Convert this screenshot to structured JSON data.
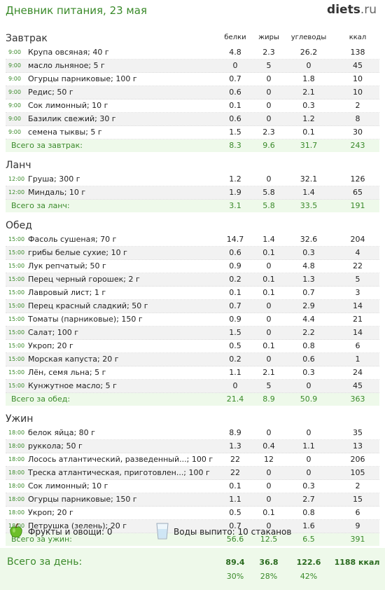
{
  "page": {
    "title": "Дневник питания, 23 мая",
    "logo_name": "diets",
    "logo_tld": ".ru"
  },
  "columns": {
    "protein": "белки",
    "fat": "жиры",
    "carbs": "углеводы",
    "kcal": "ккал"
  },
  "sections": [
    {
      "title": "Завтрак",
      "rows": [
        {
          "time": "9:00",
          "name": "Крупа овсяная; 40 г",
          "protein": "4.8",
          "fat": "2.3",
          "carbs": "26.2",
          "kcal": "138"
        },
        {
          "time": "9:00",
          "name": "масло льняное; 5 г",
          "protein": "0",
          "fat": "5",
          "carbs": "0",
          "kcal": "45"
        },
        {
          "time": "9:00",
          "name": "Огурцы парниковые; 100 г",
          "protein": "0.7",
          "fat": "0",
          "carbs": "1.8",
          "kcal": "10"
        },
        {
          "time": "9:00",
          "name": "Редис; 50 г",
          "protein": "0.6",
          "fat": "0",
          "carbs": "2.1",
          "kcal": "10"
        },
        {
          "time": "9:00",
          "name": "Сок лимонный; 10 г",
          "protein": "0.1",
          "fat": "0",
          "carbs": "0.3",
          "kcal": "2"
        },
        {
          "time": "9:00",
          "name": "Базилик свежий; 30 г",
          "protein": "0.6",
          "fat": "0",
          "carbs": "1.2",
          "kcal": "8"
        },
        {
          "time": "9:00",
          "name": "семена тыквы; 5 г",
          "protein": "1.5",
          "fat": "2.3",
          "carbs": "0.1",
          "kcal": "30"
        }
      ],
      "total": {
        "label": "Всего за завтрак:",
        "protein": "8.3",
        "fat": "9.6",
        "carbs": "31.7",
        "kcal": "243"
      }
    },
    {
      "title": "Ланч",
      "rows": [
        {
          "time": "12:00",
          "name": "Груша; 300 г",
          "protein": "1.2",
          "fat": "0",
          "carbs": "32.1",
          "kcal": "126"
        },
        {
          "time": "12:00",
          "name": "Миндаль; 10 г",
          "protein": "1.9",
          "fat": "5.8",
          "carbs": "1.4",
          "kcal": "65"
        }
      ],
      "total": {
        "label": "Всего за ланч:",
        "protein": "3.1",
        "fat": "5.8",
        "carbs": "33.5",
        "kcal": "191"
      }
    },
    {
      "title": "Обед",
      "rows": [
        {
          "time": "15:00",
          "name": "Фасоль сушеная; 70 г",
          "protein": "14.7",
          "fat": "1.4",
          "carbs": "32.6",
          "kcal": "204"
        },
        {
          "time": "15:00",
          "name": "грибы белые сухие; 10 г",
          "protein": "0.6",
          "fat": "0.1",
          "carbs": "0.3",
          "kcal": "4"
        },
        {
          "time": "15:00",
          "name": "Лук репчатый; 50 г",
          "protein": "0.9",
          "fat": "0",
          "carbs": "4.8",
          "kcal": "22"
        },
        {
          "time": "15:00",
          "name": "Перец черный горошек; 2 г",
          "protein": "0.2",
          "fat": "0.1",
          "carbs": "1.3",
          "kcal": "5"
        },
        {
          "time": "15:00",
          "name": "Лавровый лист; 1 г",
          "protein": "0.1",
          "fat": "0.1",
          "carbs": "0.7",
          "kcal": "3"
        },
        {
          "time": "15:00",
          "name": "Перец красный сладкий; 50 г",
          "protein": "0.7",
          "fat": "0",
          "carbs": "2.9",
          "kcal": "14"
        },
        {
          "time": "15:00",
          "name": "Томаты (парниковые); 150 г",
          "protein": "0.9",
          "fat": "0",
          "carbs": "4.4",
          "kcal": "21"
        },
        {
          "time": "15:00",
          "name": "Салат; 100 г",
          "protein": "1.5",
          "fat": "0",
          "carbs": "2.2",
          "kcal": "14"
        },
        {
          "time": "15:00",
          "name": "Укроп; 20 г",
          "protein": "0.5",
          "fat": "0.1",
          "carbs": "0.8",
          "kcal": "6"
        },
        {
          "time": "15:00",
          "name": "Морская капуста; 20 г",
          "protein": "0.2",
          "fat": "0",
          "carbs": "0.6",
          "kcal": "1"
        },
        {
          "time": "15:00",
          "name": "Лён, семя льна; 5 г",
          "protein": "1.1",
          "fat": "2.1",
          "carbs": "0.3",
          "kcal": "24"
        },
        {
          "time": "15:00",
          "name": "Кунжутное масло; 5 г",
          "protein": "0",
          "fat": "5",
          "carbs": "0",
          "kcal": "45"
        }
      ],
      "total": {
        "label": "Всего за обед:",
        "protein": "21.4",
        "fat": "8.9",
        "carbs": "50.9",
        "kcal": "363"
      }
    },
    {
      "title": "Ужин",
      "rows": [
        {
          "time": "18:00",
          "name": "белок яйца; 80 г",
          "protein": "8.9",
          "fat": "0",
          "carbs": "0",
          "kcal": "35"
        },
        {
          "time": "18:00",
          "name": "руккола; 50 г",
          "protein": "1.3",
          "fat": "0.4",
          "carbs": "1.1",
          "kcal": "13"
        },
        {
          "time": "18:00",
          "name": "Лосось атлантический, разведенный...; 100 г",
          "protein": "22",
          "fat": "12",
          "carbs": "0",
          "kcal": "206"
        },
        {
          "time": "18:00",
          "name": "Треска атлантическая, приготовлен...; 100 г",
          "protein": "22",
          "fat": "0",
          "carbs": "0",
          "kcal": "105"
        },
        {
          "time": "18:00",
          "name": "Сок лимонный; 10 г",
          "protein": "0.1",
          "fat": "0",
          "carbs": "0.3",
          "kcal": "2"
        },
        {
          "time": "18:00",
          "name": "Огурцы парниковые; 150 г",
          "protein": "1.1",
          "fat": "0",
          "carbs": "2.7",
          "kcal": "15"
        },
        {
          "time": "18:00",
          "name": "Укроп; 20 г",
          "protein": "0.5",
          "fat": "0.1",
          "carbs": "0.8",
          "kcal": "6"
        },
        {
          "time": "18:00",
          "name": "Петрушка (зелень); 20 г",
          "protein": "0.7",
          "fat": "0",
          "carbs": "1.6",
          "kcal": "9"
        }
      ],
      "total": {
        "label": "Всего за ужин:",
        "protein": "56.6",
        "fat": "12.5",
        "carbs": "6.5",
        "kcal": "391"
      }
    }
  ],
  "extras": {
    "fruits_icon": "apple-icon",
    "fruits_text": "Фрукты и овощи: 0",
    "water_icon": "glass-icon",
    "water_text": "Воды выпито: 10 стаканов"
  },
  "day_total": {
    "label": "Всего за день:",
    "protein": "89.4",
    "fat": "36.8",
    "carbs": "122.6",
    "kcal": "1188 ккал",
    "protein_pct": "30%",
    "fat_pct": "28%",
    "carbs_pct": "42%"
  },
  "colors": {
    "accent": "#3a8a2a",
    "total_bg": "#eef9ea",
    "alt_row": "#f2f2f2"
  }
}
